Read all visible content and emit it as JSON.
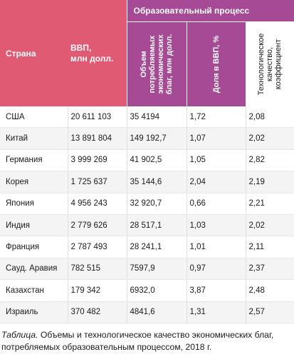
{
  "header": {
    "country": "Страна",
    "gdp_line1": "ВВП,",
    "gdp_line2": "млн долл.",
    "group": "Образовательный процесс",
    "volume": "Объем потребляемых экономических благ, млн долл.",
    "share": "Доля в ВВП, %",
    "quality": "Технологическое качество, коэффициент"
  },
  "rows": [
    {
      "country": "США",
      "gdp": "20 611 103",
      "volume": "35 4194",
      "share": "1,72",
      "quality": "2,08"
    },
    {
      "country": "Китай",
      "gdp": "13 891 804",
      "volume": "149 192,7",
      "share": "1,07",
      "quality": "2,02"
    },
    {
      "country": "Германия",
      "gdp": "3 999 269",
      "volume": "41 902,5",
      "share": "1,05",
      "quality": "2,82"
    },
    {
      "country": "Корея",
      "gdp": "1 725 637",
      "volume": "35 144,6",
      "share": "2,04",
      "quality": "2,19"
    },
    {
      "country": "Япония",
      "gdp": "4 956 243",
      "volume": "32 920,7",
      "share": "0,66",
      "quality": "2,21"
    },
    {
      "country": "Индия",
      "gdp": "2 779 626",
      "volume": "28 517,1",
      "share": "1,03",
      "quality": "2,02"
    },
    {
      "country": "Франция",
      "gdp": "2 787 493",
      "volume": "28 241,1",
      "share": "1,01",
      "quality": "2,11"
    },
    {
      "country": "Сауд. Аравия",
      "gdp": "782 515",
      "volume": "7597,9",
      "share": "0,97",
      "quality": "2,37"
    },
    {
      "country": "Казахстан",
      "gdp": "179 342",
      "volume": "6932,0",
      "share": "3,87",
      "quality": "2,48"
    },
    {
      "country": "Израиль",
      "gdp": "370 482",
      "volume": "4841,6",
      "share": "1,31",
      "quality": "2,57"
    }
  ],
  "caption": {
    "lead": "Таблица.",
    "text": " Объемы и технологическое качество экономических благ, потребляемых образовательным процессом, 2018 г."
  },
  "colors": {
    "header_pink": "#e05a74",
    "header_purple": "#a64a95"
  }
}
